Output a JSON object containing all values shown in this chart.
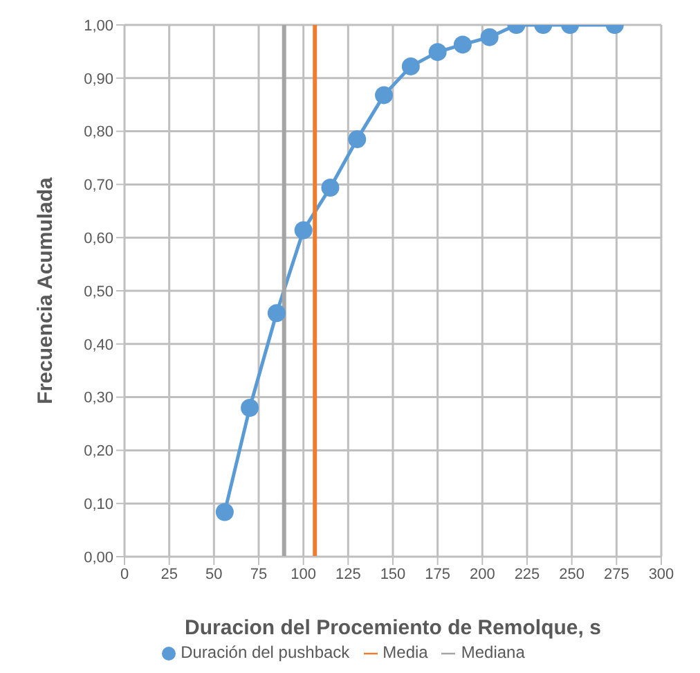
{
  "chart_data": {
    "type": "line",
    "xlabel": "Duracion del Procemiento de Remolque, s",
    "ylabel": "Frecuencia Acumulada",
    "series": [
      {
        "name": "Duración del pushback",
        "color": "#5b9bd5",
        "marker": "circle",
        "x": [
          56,
          70,
          85,
          100,
          115,
          130,
          145,
          160,
          175,
          189,
          204,
          219,
          234,
          249,
          274
        ],
        "values": [
          0.084,
          0.28,
          0.458,
          0.614,
          0.694,
          0.785,
          0.868,
          0.922,
          0.949,
          0.963,
          0.977,
          1,
          1,
          1,
          1
        ]
      },
      {
        "name": "Media",
        "color": "#ed7d31",
        "marker": "none",
        "x": [
          106.4,
          106.4
        ],
        "values": [
          0,
          1
        ]
      },
      {
        "name": "Mediana",
        "color": "#a5a5a5",
        "marker": "none",
        "x": [
          89.2,
          89.2
        ],
        "values": [
          0,
          1
        ]
      }
    ],
    "xlim": [
      0,
      300
    ],
    "xticks": [
      0,
      25,
      50,
      75,
      100,
      125,
      150,
      175,
      200,
      225,
      250,
      275,
      300
    ],
    "ylim": [
      0,
      1
    ],
    "yticks": [
      {
        "value": 0,
        "label": "0,00"
      },
      {
        "value": 0.1,
        "label": "0,10"
      },
      {
        "value": 0.2,
        "label": "0,20"
      },
      {
        "value": 0.3,
        "label": "0,30"
      },
      {
        "value": 0.4,
        "label": "0,40"
      },
      {
        "value": 0.5,
        "label": "0,50"
      },
      {
        "value": 0.6,
        "label": "0,60"
      },
      {
        "value": 0.7,
        "label": "0,70"
      },
      {
        "value": 0.8,
        "label": "0,80"
      },
      {
        "value": 0.9,
        "label": "0,90"
      },
      {
        "value": 1,
        "label": "1,00"
      }
    ],
    "grid": true,
    "legend": "bottom",
    "line_style": "solid"
  }
}
